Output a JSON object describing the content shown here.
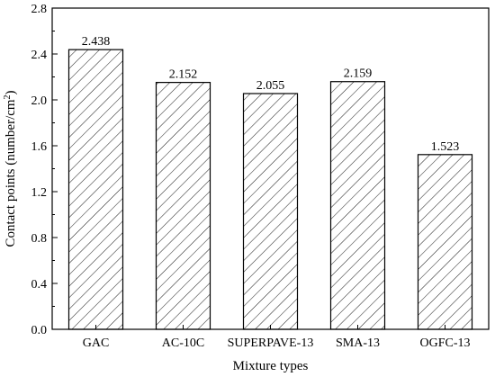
{
  "chart_data": {
    "type": "bar",
    "categories": [
      "GAC",
      "AC-10C",
      "SUPERPAVE-13",
      "SMA-13",
      "OGFC-13"
    ],
    "values": [
      2.438,
      2.152,
      2.055,
      2.159,
      1.523
    ],
    "data_labels": [
      "2.438",
      "2.152",
      "2.055",
      "2.159",
      "1.523"
    ],
    "xlabel": "Mixture types",
    "ylabel": "Contact points (number/cm",
    "ylabel_superscript": "2",
    "ylabel_suffix": ")",
    "ylim": [
      0.0,
      2.8
    ],
    "yticks": [
      "0.0",
      "0.4",
      "0.8",
      "1.2",
      "1.6",
      "2.0",
      "2.4",
      "2.8"
    ],
    "bar_fill": "diagonal-hatch",
    "grid": false,
    "legend": "none"
  }
}
